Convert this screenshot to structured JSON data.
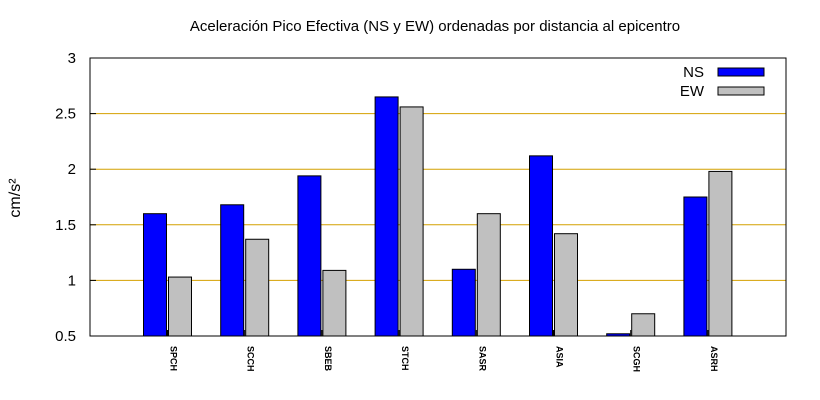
{
  "chart_data": {
    "type": "bar",
    "title": "Aceleración Pico Efectiva (NS y EW) ordenadas por distancia al epicentro",
    "xlabel": "",
    "ylabel": "cm/s²",
    "ylim": [
      0.5,
      3
    ],
    "yticks": [
      0.5,
      1,
      1.5,
      2,
      2.5,
      3
    ],
    "ytick_labels": [
      "0.5",
      "1",
      "1.5",
      "2",
      "2.5",
      "3"
    ],
    "grid": "horizontal",
    "grid_color": "#d4a000",
    "legend_position": "top-right",
    "categories": [
      "SPCH",
      "SCCH",
      "SBEB",
      "STCH",
      "SASR",
      "ASIA",
      "SCGH",
      "ASRH"
    ],
    "series": [
      {
        "name": "NS",
        "color": "#0000ff",
        "values": [
          1.6,
          1.68,
          1.94,
          2.65,
          1.1,
          2.12,
          0.52,
          1.75
        ]
      },
      {
        "name": "EW",
        "color": "#c0c0c0",
        "values": [
          1.03,
          1.37,
          1.09,
          2.56,
          1.6,
          1.42,
          0.7,
          1.98
        ]
      }
    ]
  }
}
